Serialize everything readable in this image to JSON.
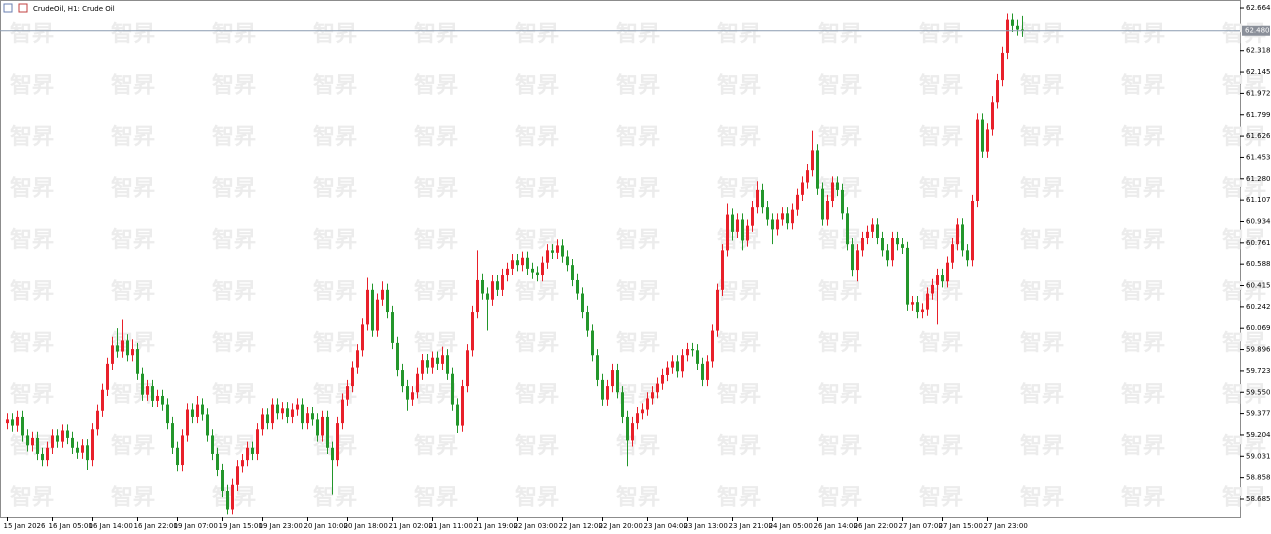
{
  "chart_data": {
    "type": "candlestick",
    "title": "CrudeOil, H1:  Crude Oil",
    "watermark": "智昇",
    "up_color": "#e8202a",
    "down_color": "#23962b",
    "categories": [
      "15 Jan 2026",
      null,
      null,
      null,
      null,
      null,
      null,
      null,
      null,
      "16 Jan 05:00",
      null,
      null,
      null,
      null,
      null,
      null,
      null,
      "16 Jan 14:00",
      null,
      null,
      null,
      null,
      null,
      null,
      null,
      null,
      "16 Jan 22:00",
      null,
      null,
      null,
      null,
      null,
      null,
      null,
      "19 Jan 07:00",
      null,
      null,
      null,
      null,
      null,
      null,
      null,
      null,
      "19 Jan 15:00",
      null,
      null,
      null,
      null,
      null,
      null,
      null,
      "19 Jan 23:00",
      null,
      null,
      null,
      null,
      null,
      null,
      null,
      null,
      "20 Jan 10:00",
      null,
      null,
      null,
      null,
      null,
      null,
      null,
      "20 Jan 18:00",
      null,
      null,
      null,
      null,
      null,
      null,
      null,
      null,
      "21 Jan 02:00",
      null,
      null,
      null,
      null,
      null,
      null,
      null,
      "21 Jan 11:00",
      null,
      null,
      null,
      null,
      null,
      null,
      null,
      null,
      "21 Jan 19:00",
      null,
      null,
      null,
      null,
      null,
      null,
      null,
      "22 Jan 03:00",
      null,
      null,
      null,
      null,
      null,
      null,
      null,
      null,
      "22 Jan 12:00",
      null,
      null,
      null,
      null,
      null,
      null,
      null,
      "22 Jan 20:00",
      null,
      null,
      null,
      null,
      null,
      null,
      null,
      null,
      "23 Jan 04:00",
      null,
      null,
      null,
      null,
      null,
      null,
      null,
      "23 Jan 13:00",
      null,
      null,
      null,
      null,
      null,
      null,
      null,
      null,
      "23 Jan 21:00",
      null,
      null,
      null,
      null,
      null,
      null,
      null,
      "24 Jan 05:00",
      null,
      null,
      null,
      null,
      null,
      null,
      null,
      null,
      "26 Jan 14:00",
      null,
      null,
      null,
      null,
      null,
      null,
      null,
      "26 Jan 22:00",
      null,
      null,
      null,
      null,
      null,
      null,
      null,
      null,
      "27 Jan 07:00",
      null,
      null,
      null,
      null,
      null,
      null,
      null,
      "27 Jan 15:00",
      null,
      null,
      null,
      null,
      null,
      null,
      null,
      null,
      "27 Jan 23:00",
      null,
      null,
      null,
      null,
      null,
      null,
      null
    ],
    "open": [
      59.3,
      59.33,
      59.28,
      59.35,
      59.2,
      59.12,
      59.18,
      59.05,
      59.0,
      59.1,
      59.2,
      59.15,
      59.24,
      59.18,
      59.1,
      59.06,
      59.12,
      59.0,
      59.25,
      59.4,
      59.57,
      59.78,
      59.93,
      59.88,
      59.97,
      59.85,
      59.9,
      59.7,
      59.53,
      59.6,
      59.48,
      59.52,
      59.45,
      59.3,
      59.1,
      58.96,
      59.2,
      59.41,
      59.35,
      59.45,
      59.37,
      59.2,
      59.05,
      58.92,
      58.75,
      58.6,
      58.8,
      58.95,
      59.0,
      59.1,
      59.05,
      59.25,
      59.37,
      59.3,
      59.45,
      59.38,
      59.42,
      59.35,
      59.41,
      59.45,
      59.3,
      59.38,
      59.33,
      59.2,
      59.35,
      59.1,
      59.0,
      59.3,
      59.49,
      59.6,
      59.75,
      59.89,
      60.1,
      60.38,
      60.05,
      60.3,
      60.38,
      60.2,
      59.95,
      59.73,
      59.6,
      59.49,
      59.55,
      59.7,
      59.81,
      59.75,
      59.83,
      59.78,
      59.85,
      59.7,
      59.45,
      59.28,
      59.6,
      59.89,
      60.2,
      60.46,
      60.35,
      60.3,
      60.45,
      60.38,
      60.5,
      60.55,
      60.62,
      60.58,
      60.64,
      60.55,
      60.52,
      60.5,
      60.6,
      60.7,
      60.68,
      60.74,
      60.65,
      60.58,
      60.46,
      60.35,
      60.2,
      60.05,
      59.85,
      59.65,
      59.49,
      59.6,
      59.73,
      59.55,
      59.35,
      59.16,
      59.3,
      59.38,
      59.41,
      59.5,
      59.55,
      59.62,
      59.69,
      59.75,
      59.8,
      59.72,
      59.85,
      59.9,
      59.89,
      59.78,
      59.65,
      59.8,
      60.05,
      60.38,
      60.7,
      60.99,
      60.85,
      60.95,
      60.78,
      60.9,
      61.05,
      61.19,
      61.05,
      60.95,
      60.87,
      60.95,
      61.0,
      60.92,
      61.03,
      61.15,
      61.25,
      61.35,
      61.51,
      61.2,
      60.95,
      61.1,
      61.25,
      61.19,
      61.0,
      60.75,
      60.54,
      60.7,
      60.8,
      60.85,
      60.91,
      60.8,
      60.7,
      60.62,
      60.8,
      60.75,
      60.72,
      60.26,
      60.28,
      60.2,
      60.22,
      60.35,
      60.42,
      60.5,
      60.45,
      60.6,
      60.75,
      60.91,
      60.7,
      60.62,
      61.1,
      61.76,
      61.5,
      61.68,
      61.9,
      62.08,
      62.3,
      62.57,
      62.52,
      62.49
    ],
    "high": [
      59.38,
      59.38,
      59.4,
      59.4,
      59.25,
      59.23,
      59.23,
      59.1,
      59.15,
      59.25,
      59.25,
      59.29,
      59.29,
      59.23,
      59.15,
      59.17,
      59.17,
      59.3,
      59.45,
      59.62,
      59.83,
      60.0,
      60.07,
      60.14,
      60.02,
      59.98,
      59.95,
      59.75,
      59.65,
      59.65,
      59.57,
      59.57,
      59.5,
      59.35,
      59.15,
      59.25,
      59.46,
      59.46,
      59.52,
      59.5,
      59.42,
      59.25,
      59.1,
      58.97,
      58.8,
      58.85,
      59.0,
      59.05,
      59.15,
      59.15,
      59.3,
      59.42,
      59.42,
      59.5,
      59.5,
      59.47,
      59.47,
      59.46,
      59.5,
      59.5,
      59.43,
      59.43,
      59.38,
      59.4,
      59.4,
      59.15,
      59.35,
      59.54,
      59.65,
      59.8,
      59.94,
      60.15,
      60.48,
      60.43,
      60.35,
      60.45,
      60.43,
      60.25,
      60.0,
      59.78,
      59.65,
      59.6,
      59.75,
      59.86,
      59.86,
      59.88,
      59.88,
      59.92,
      59.9,
      59.75,
      59.5,
      59.65,
      59.94,
      60.25,
      60.7,
      60.51,
      60.4,
      60.5,
      60.5,
      60.55,
      60.6,
      60.67,
      60.67,
      60.69,
      60.69,
      60.6,
      60.57,
      60.65,
      60.75,
      60.75,
      60.79,
      60.79,
      60.7,
      60.63,
      60.51,
      60.4,
      60.25,
      60.1,
      59.9,
      59.7,
      59.65,
      59.78,
      59.78,
      59.6,
      59.4,
      59.35,
      59.43,
      59.46,
      59.55,
      59.6,
      59.67,
      59.74,
      59.8,
      59.85,
      59.85,
      59.9,
      59.95,
      59.95,
      59.94,
      59.83,
      59.85,
      60.1,
      60.43,
      60.75,
      61.08,
      61.04,
      61.0,
      61.0,
      60.95,
      61.1,
      61.26,
      61.24,
      61.1,
      61.0,
      61.0,
      61.05,
      61.05,
      61.08,
      61.2,
      61.3,
      61.4,
      61.67,
      61.56,
      61.25,
      61.15,
      61.3,
      61.3,
      61.24,
      61.05,
      60.8,
      60.75,
      60.85,
      60.9,
      60.96,
      60.96,
      60.85,
      60.75,
      60.85,
      60.85,
      60.8,
      60.77,
      60.33,
      60.33,
      60.27,
      60.4,
      60.47,
      60.55,
      60.55,
      60.65,
      60.8,
      60.96,
      60.96,
      60.75,
      61.15,
      61.81,
      61.81,
      61.73,
      61.95,
      62.13,
      62.35,
      62.62,
      62.62,
      62.57,
      62.6
    ],
    "low": [
      59.25,
      59.23,
      59.23,
      59.15,
      59.07,
      59.07,
      59.0,
      58.95,
      58.95,
      59.05,
      59.1,
      59.1,
      59.13,
      59.05,
      59.01,
      59.01,
      58.92,
      58.95,
      59.2,
      59.35,
      59.52,
      59.73,
      59.83,
      59.83,
      59.8,
      59.8,
      59.65,
      59.48,
      59.48,
      59.43,
      59.43,
      59.4,
      59.25,
      59.05,
      58.91,
      58.91,
      59.15,
      59.3,
      59.3,
      59.32,
      59.15,
      59.0,
      58.87,
      58.7,
      58.56,
      58.56,
      58.75,
      58.9,
      58.95,
      59.0,
      59.0,
      59.2,
      59.25,
      59.25,
      59.33,
      59.33,
      59.3,
      59.3,
      59.36,
      59.25,
      59.25,
      59.28,
      59.15,
      59.15,
      59.05,
      58.72,
      58.95,
      59.25,
      59.44,
      59.55,
      59.7,
      59.84,
      60.05,
      60.0,
      60.0,
      60.25,
      60.15,
      59.9,
      59.68,
      59.55,
      59.4,
      59.44,
      59.5,
      59.65,
      59.7,
      59.7,
      59.73,
      59.73,
      59.65,
      59.4,
      59.22,
      59.23,
      59.55,
      59.84,
      60.15,
      60.3,
      60.05,
      60.25,
      60.33,
      60.33,
      60.45,
      60.5,
      60.53,
      60.53,
      60.5,
      60.47,
      60.45,
      60.45,
      60.55,
      60.63,
      60.63,
      60.6,
      60.53,
      60.41,
      60.3,
      60.15,
      60.0,
      59.8,
      59.6,
      59.44,
      59.44,
      59.55,
      59.5,
      59.3,
      58.95,
      59.11,
      59.25,
      59.33,
      59.36,
      59.45,
      59.5,
      59.57,
      59.64,
      59.7,
      59.67,
      59.67,
      59.8,
      59.84,
      59.73,
      59.6,
      59.6,
      59.75,
      60.0,
      60.33,
      60.65,
      60.78,
      60.8,
      60.7,
      60.73,
      60.85,
      61.0,
      61.0,
      60.9,
      60.75,
      60.82,
      60.9,
      60.87,
      60.87,
      60.98,
      61.1,
      61.2,
      61.3,
      61.15,
      60.9,
      60.9,
      61.05,
      61.14,
      60.95,
      60.7,
      60.49,
      60.45,
      60.65,
      60.75,
      60.8,
      60.75,
      60.65,
      60.57,
      60.57,
      60.7,
      60.67,
      60.21,
      60.21,
      60.15,
      60.15,
      60.17,
      60.3,
      60.1,
      60.4,
      60.4,
      60.55,
      60.7,
      60.65,
      60.57,
      60.57,
      61.05,
      61.45,
      61.45,
      61.63,
      61.85,
      62.03,
      62.25,
      62.47,
      62.44,
      62.43
    ],
    "close": [
      59.33,
      59.28,
      59.35,
      59.2,
      59.12,
      59.18,
      59.05,
      59.0,
      59.1,
      59.2,
      59.15,
      59.24,
      59.18,
      59.1,
      59.06,
      59.12,
      59.0,
      59.25,
      59.4,
      59.57,
      59.78,
      59.93,
      59.88,
      59.97,
      59.85,
      59.9,
      59.7,
      59.53,
      59.6,
      59.48,
      59.52,
      59.45,
      59.3,
      59.1,
      58.96,
      59.2,
      59.41,
      59.35,
      59.45,
      59.37,
      59.2,
      59.05,
      58.92,
      58.75,
      58.6,
      58.8,
      58.95,
      59.0,
      59.1,
      59.05,
      59.25,
      59.37,
      59.3,
      59.45,
      59.38,
      59.42,
      59.35,
      59.41,
      59.45,
      59.3,
      59.38,
      59.33,
      59.2,
      59.35,
      59.1,
      59.0,
      59.3,
      59.49,
      59.6,
      59.75,
      59.89,
      60.1,
      60.38,
      60.05,
      60.3,
      60.38,
      60.2,
      59.95,
      59.73,
      59.6,
      59.49,
      59.55,
      59.7,
      59.81,
      59.75,
      59.83,
      59.78,
      59.85,
      59.7,
      59.45,
      59.28,
      59.6,
      59.89,
      60.2,
      60.46,
      60.35,
      60.3,
      60.45,
      60.38,
      60.5,
      60.55,
      60.62,
      60.58,
      60.64,
      60.55,
      60.52,
      60.5,
      60.6,
      60.7,
      60.68,
      60.74,
      60.65,
      60.58,
      60.46,
      60.35,
      60.2,
      60.05,
      59.85,
      59.65,
      59.49,
      59.6,
      59.73,
      59.55,
      59.35,
      59.16,
      59.3,
      59.38,
      59.41,
      59.5,
      59.55,
      59.62,
      59.69,
      59.75,
      59.8,
      59.72,
      59.85,
      59.9,
      59.89,
      59.78,
      59.65,
      59.8,
      60.05,
      60.38,
      60.7,
      60.99,
      60.85,
      60.95,
      60.78,
      60.9,
      61.05,
      61.19,
      61.05,
      60.95,
      60.87,
      60.95,
      61.0,
      60.92,
      61.03,
      61.15,
      61.25,
      61.35,
      61.51,
      61.2,
      60.95,
      61.1,
      61.25,
      61.19,
      61.0,
      60.75,
      60.54,
      60.7,
      60.8,
      60.85,
      60.91,
      60.8,
      60.7,
      60.62,
      60.8,
      60.75,
      60.72,
      60.26,
      60.28,
      60.2,
      60.22,
      60.35,
      60.42,
      60.5,
      60.45,
      60.6,
      60.75,
      60.91,
      60.7,
      60.62,
      61.1,
      61.76,
      61.5,
      61.68,
      61.9,
      62.08,
      62.3,
      62.57,
      62.52,
      62.49,
      62.48
    ],
    "ylim": [
      58.539,
      62.729
    ],
    "yticks": [
      62.664,
      62.318,
      62.145,
      61.972,
      61.799,
      61.626,
      61.453,
      {
        "value": 61.28,
        "label": "61.280"
      },
      61.107,
      60.934,
      60.761,
      60.588,
      60.415,
      60.242,
      60.069,
      59.896,
      59.723,
      {
        "value": 59.55,
        "label": "59.550"
      },
      59.377,
      59.204,
      59.031,
      58.858,
      58.685
    ],
    "current_price": {
      "value": 62.48,
      "label": "62.480"
    }
  }
}
